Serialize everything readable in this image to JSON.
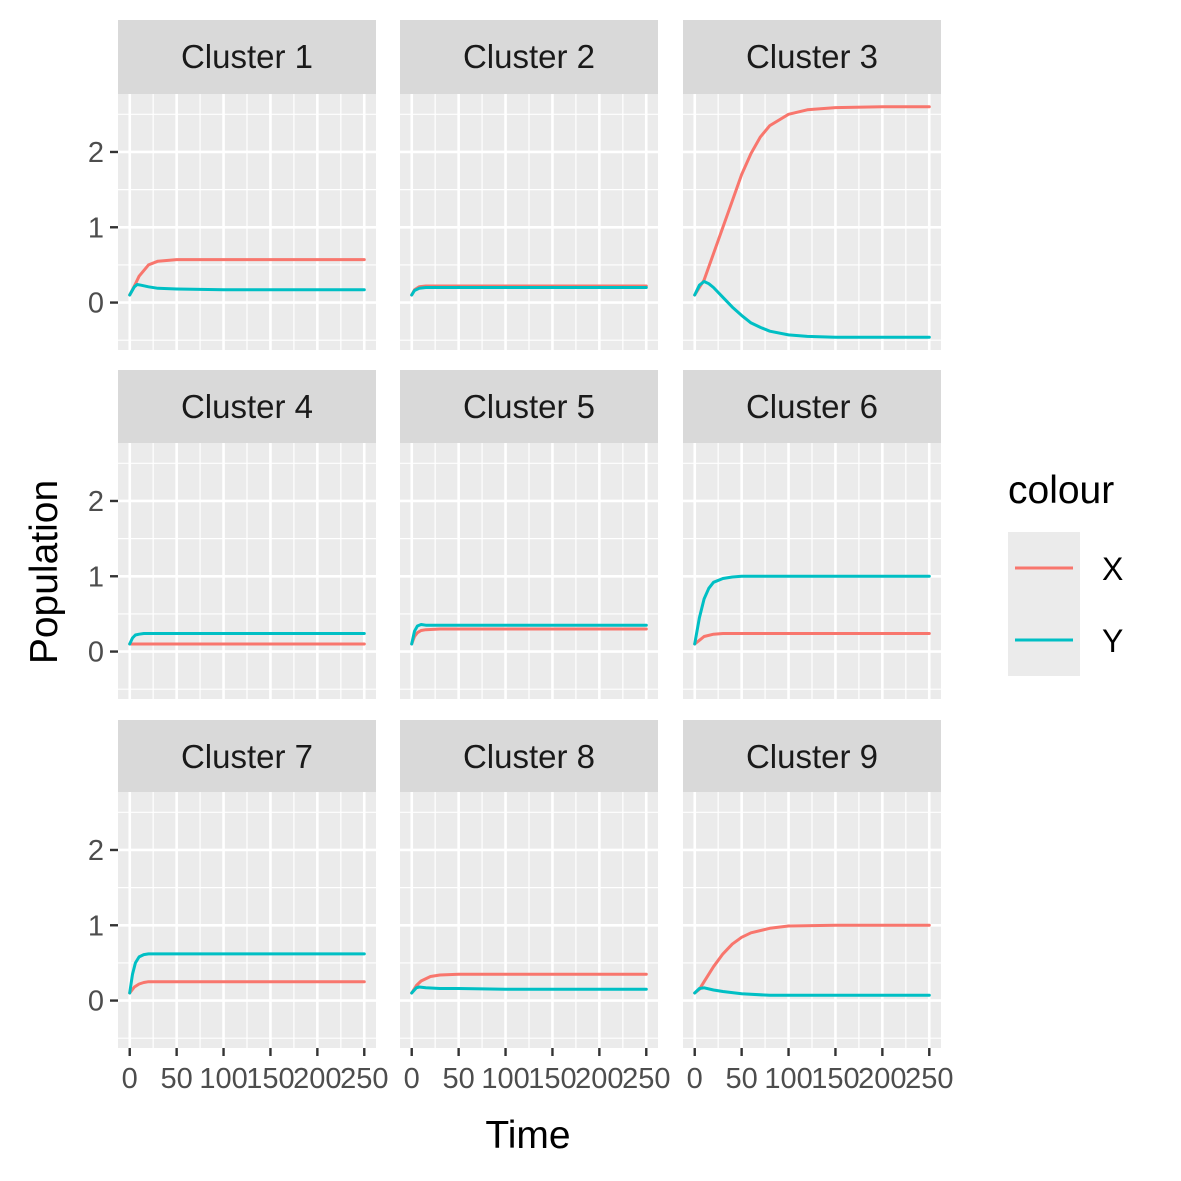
{
  "chart_data": {
    "type": "line",
    "facets": [
      {
        "title": "Cluster 1",
        "series": [
          {
            "name": "X",
            "x": [
              0,
              5,
              10,
              20,
              30,
              50,
              100,
              150,
              200,
              250
            ],
            "y": [
              0.1,
              0.22,
              0.35,
              0.5,
              0.55,
              0.57,
              0.57,
              0.57,
              0.57,
              0.57
            ]
          },
          {
            "name": "Y",
            "x": [
              0,
              5,
              8,
              12,
              20,
              30,
              50,
              100,
              150,
              200,
              250
            ],
            "y": [
              0.1,
              0.21,
              0.24,
              0.23,
              0.21,
              0.19,
              0.18,
              0.17,
              0.17,
              0.17,
              0.17
            ]
          }
        ]
      },
      {
        "title": "Cluster 2",
        "series": [
          {
            "name": "X",
            "x": [
              0,
              3,
              8,
              15,
              30,
              100,
              250
            ],
            "y": [
              0.1,
              0.17,
              0.21,
              0.22,
              0.22,
              0.22,
              0.22
            ]
          },
          {
            "name": "Y",
            "x": [
              0,
              3,
              8,
              15,
              30,
              100,
              250
            ],
            "y": [
              0.1,
              0.16,
              0.19,
              0.2,
              0.2,
              0.2,
              0.2
            ]
          }
        ]
      },
      {
        "title": "Cluster 3",
        "series": [
          {
            "name": "X",
            "x": [
              0,
              5,
              10,
              20,
              30,
              40,
              50,
              60,
              70,
              80,
              100,
              120,
              150,
              200,
              250
            ],
            "y": [
              0.1,
              0.2,
              0.3,
              0.65,
              1.0,
              1.35,
              1.7,
              1.98,
              2.2,
              2.35,
              2.5,
              2.56,
              2.59,
              2.6,
              2.6
            ]
          },
          {
            "name": "Y",
            "x": [
              0,
              5,
              10,
              15,
              20,
              30,
              40,
              50,
              60,
              70,
              80,
              100,
              120,
              150,
              200,
              250
            ],
            "y": [
              0.1,
              0.23,
              0.28,
              0.25,
              0.2,
              0.07,
              -0.06,
              -0.17,
              -0.27,
              -0.33,
              -0.38,
              -0.43,
              -0.45,
              -0.46,
              -0.46,
              -0.46
            ]
          }
        ]
      },
      {
        "title": "Cluster 4",
        "series": [
          {
            "name": "X",
            "x": [
              0,
              5,
              10,
              50,
              250
            ],
            "y": [
              0.1,
              0.1,
              0.1,
              0.1,
              0.1
            ]
          },
          {
            "name": "Y",
            "x": [
              0,
              3,
              6,
              10,
              15,
              30,
              250
            ],
            "y": [
              0.1,
              0.18,
              0.22,
              0.23,
              0.24,
              0.24,
              0.24
            ]
          }
        ]
      },
      {
        "title": "Cluster 5",
        "series": [
          {
            "name": "X",
            "x": [
              0,
              3,
              6,
              10,
              15,
              30,
              250
            ],
            "y": [
              0.1,
              0.2,
              0.25,
              0.28,
              0.29,
              0.3,
              0.3
            ]
          },
          {
            "name": "Y",
            "x": [
              0,
              3,
              6,
              10,
              15,
              30,
              250
            ],
            "y": [
              0.1,
              0.27,
              0.34,
              0.36,
              0.35,
              0.35,
              0.35
            ]
          }
        ]
      },
      {
        "title": "Cluster 6",
        "series": [
          {
            "name": "X",
            "x": [
              0,
              5,
              10,
              20,
              30,
              50,
              250
            ],
            "y": [
              0.1,
              0.15,
              0.2,
              0.23,
              0.24,
              0.24,
              0.24
            ]
          },
          {
            "name": "Y",
            "x": [
              0,
              5,
              10,
              15,
              20,
              30,
              40,
              50,
              100,
              250
            ],
            "y": [
              0.1,
              0.45,
              0.7,
              0.84,
              0.92,
              0.97,
              0.99,
              1.0,
              1.0,
              1.0
            ]
          }
        ]
      },
      {
        "title": "Cluster 7",
        "series": [
          {
            "name": "X",
            "x": [
              0,
              5,
              10,
              15,
              20,
              30,
              250
            ],
            "y": [
              0.1,
              0.18,
              0.22,
              0.24,
              0.25,
              0.25,
              0.25
            ]
          },
          {
            "name": "Y",
            "x": [
              0,
              3,
              6,
              10,
              15,
              20,
              30,
              250
            ],
            "y": [
              0.1,
              0.35,
              0.5,
              0.58,
              0.61,
              0.62,
              0.62,
              0.62
            ]
          }
        ]
      },
      {
        "title": "Cluster 8",
        "series": [
          {
            "name": "X",
            "x": [
              0,
              5,
              10,
              20,
              30,
              50,
              100,
              250
            ],
            "y": [
              0.1,
              0.2,
              0.26,
              0.32,
              0.34,
              0.35,
              0.35,
              0.35
            ]
          },
          {
            "name": "Y",
            "x": [
              0,
              5,
              8,
              15,
              30,
              50,
              100,
              250
            ],
            "y": [
              0.1,
              0.17,
              0.18,
              0.17,
              0.16,
              0.16,
              0.15,
              0.15
            ]
          }
        ]
      },
      {
        "title": "Cluster 9",
        "series": [
          {
            "name": "X",
            "x": [
              0,
              5,
              10,
              20,
              30,
              40,
              50,
              60,
              80,
              100,
              150,
              200,
              250
            ],
            "y": [
              0.1,
              0.15,
              0.25,
              0.45,
              0.62,
              0.75,
              0.84,
              0.9,
              0.96,
              0.99,
              1.0,
              1.0,
              1.0
            ]
          },
          {
            "name": "Y",
            "x": [
              0,
              5,
              10,
              20,
              30,
              50,
              80,
              100,
              150,
              250
            ],
            "y": [
              0.1,
              0.16,
              0.17,
              0.14,
              0.12,
              0.09,
              0.07,
              0.07,
              0.07,
              0.07
            ]
          }
        ]
      }
    ],
    "xlabel": "Time",
    "ylabel": "Population",
    "xlim": [
      -12.5,
      262.5
    ],
    "ylim": [
      -0.63,
      2.77
    ],
    "x_ticks": [
      0,
      50,
      100,
      150,
      200,
      250
    ],
    "x_tick_labels": [
      "0",
      "50",
      "100",
      "150",
      "200",
      "250"
    ],
    "y_ticks": [
      0,
      1,
      2
    ],
    "y_tick_labels": [
      "0",
      "1",
      "2"
    ],
    "legend": {
      "title": "colour",
      "position": "right",
      "entries": [
        "X",
        "Y"
      ]
    },
    "colors": {
      "X": "#F8766D",
      "Y": "#00BFC4",
      "panel_bg": "#EBEBEB",
      "strip_bg": "#D9D9D9",
      "grid": "#FFFFFF"
    },
    "grid": true
  }
}
